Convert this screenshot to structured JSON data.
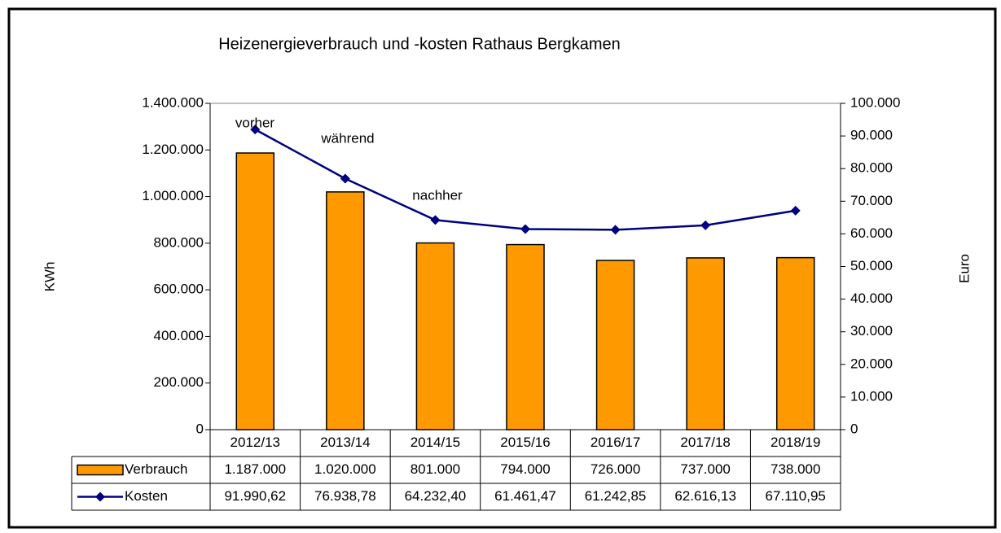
{
  "chart_data": {
    "type": "bar",
    "title": "Heizenergieverbrauch und -kosten Rathaus Bergkamen",
    "ylabel": "KWh",
    "y2label": "Euro",
    "categories": [
      "2012/13",
      "2013/14",
      "2014/15",
      "2015/16",
      "2016/17",
      "2017/18",
      "2018/19"
    ],
    "series": [
      {
        "name": "Verbrauch",
        "color": "#ff9900",
        "values": [
          1187000,
          1020000,
          801000,
          794000,
          726000,
          737000,
          738000
        ],
        "value_labels": [
          "1.187.000",
          "1.020.000",
          "801.000",
          "794.000",
          "726.000",
          "737.000",
          "738.000"
        ]
      },
      {
        "name": "Kosten",
        "color": "#000080",
        "type": "line",
        "axis": "y2",
        "values": [
          91990.62,
          76938.78,
          64232.4,
          61461.47,
          61242.85,
          62616.13,
          67110.95
        ],
        "value_labels": [
          "91.990,62",
          "76.938,78",
          "64.232,40",
          "61.461,47",
          "61.242,85",
          "62.616,13",
          "67.110,95"
        ]
      }
    ],
    "annotations": [
      "vorher",
      "während",
      "nachher"
    ],
    "ylim": [
      0,
      1400000
    ],
    "yticks": [
      0,
      {
        "value": 200000,
        "label": "200.000"
      },
      {
        "value": 400000,
        "label": "400.000"
      },
      {
        "value": 600000,
        "label": "600.000"
      },
      {
        "value": 800000,
        "label": "800.000"
      },
      {
        "value": 1000000,
        "label": "1.000.000"
      },
      {
        "value": 1200000,
        "label": "1.200.000"
      },
      {
        "value": 1400000,
        "label": "1.400.000"
      }
    ],
    "y2lim": [
      0,
      100000
    ],
    "y2ticks": [
      0,
      {
        "value": 10000,
        "label": "10.000"
      },
      {
        "value": 20000,
        "label": "20.000"
      },
      {
        "value": 30000,
        "label": "30.000"
      },
      {
        "value": 40000,
        "label": "40.000"
      },
      {
        "value": 50000,
        "label": "50.000"
      },
      {
        "value": 60000,
        "label": "60.000"
      },
      {
        "value": 70000,
        "label": "70.000"
      },
      {
        "value": 80000,
        "label": "80.000"
      },
      {
        "value": 90000,
        "label": "90.000"
      },
      {
        "value": 100000,
        "label": "100.000"
      }
    ],
    "grid": false
  }
}
